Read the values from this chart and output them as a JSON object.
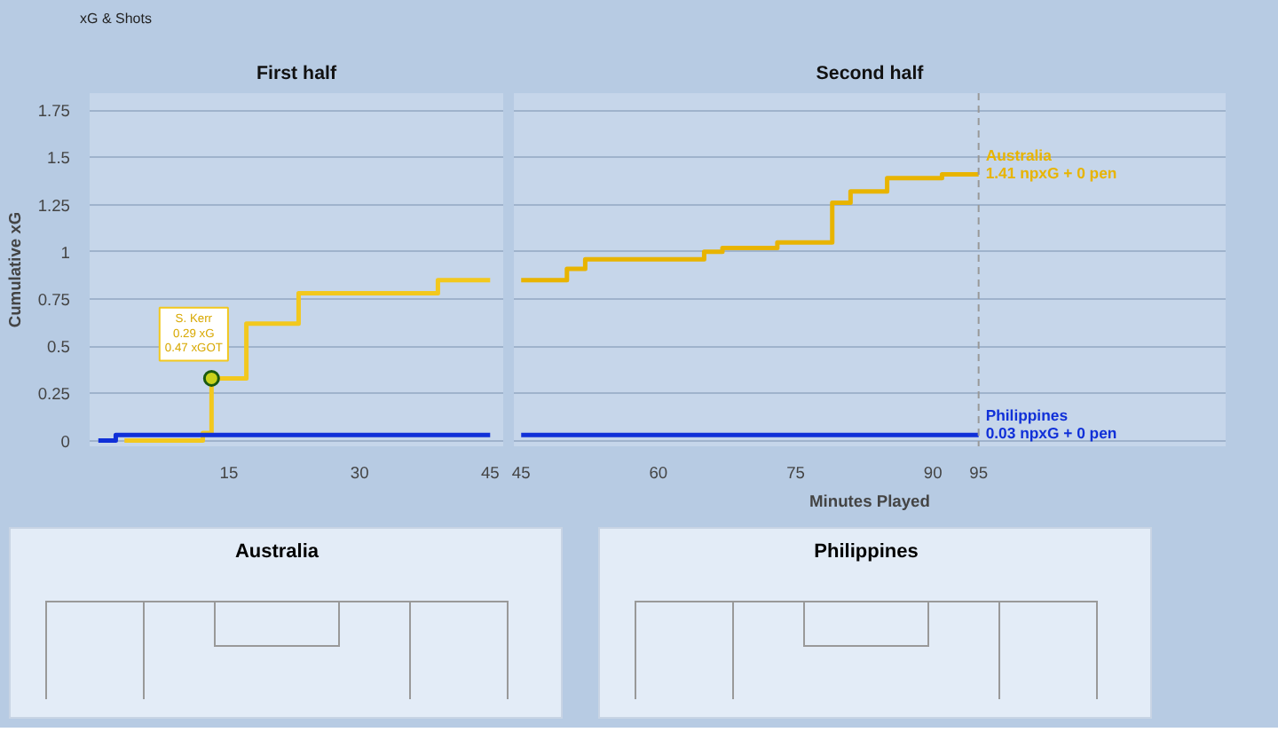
{
  "chart_data": [
    {
      "type": "step",
      "title": "First half",
      "ylabel": "Cumulative xG",
      "xlim": [
        -1,
        46.5
      ],
      "xticks": [
        15,
        30,
        45
      ],
      "ylim": [
        -0.03,
        1.84
      ],
      "yticks": [
        0,
        0.25,
        0.5,
        0.75,
        1,
        1.25,
        1.5,
        1.75
      ],
      "grid": "y",
      "annotations": [
        "xG & Shots",
        "S. Kerr\n0.29 xG\n0.47 xGOT"
      ],
      "series": [
        {
          "color": "#1030d8",
          "x": [
            0,
            2,
            45
          ],
          "values": [
            0,
            0.03,
            0.03
          ]
        },
        {
          "color": "#f2c81e",
          "x": [
            3,
            12,
            13,
            17,
            23,
            39,
            45
          ],
          "values": [
            0,
            0.04,
            0.33,
            0.62,
            0.78,
            0.85,
            0.85
          ]
        },
        {
          "type": "scatter",
          "marker": "circle",
          "color": "#c8d21c",
          "x": [
            13
          ],
          "values": [
            0.33
          ]
        }
      ]
    },
    {
      "type": "step",
      "title": "Second half",
      "xlabel": "Minutes Played",
      "xlim": [
        44.2,
        122
      ],
      "xticks": [
        45,
        60,
        75,
        90,
        95
      ],
      "ylim": [
        -0.03,
        1.84
      ],
      "grid": "y",
      "tick_labels": "x",
      "annotations": [
        {
          "text": "1.41 npxG + 0 pen",
          "x": 95,
          "y": 1.41
        },
        {
          "text": "0.03 npxG + 0 pen",
          "x": 95,
          "y": 0.03
        }
      ],
      "ref_lines": [
        {
          "axis": "x",
          "value": 95,
          "color": "#999999",
          "line_style": "dashed"
        }
      ],
      "series": [
        {
          "name": "Australia",
          "color": "#e8b400",
          "x": [
            45,
            50,
            52,
            65,
            67,
            73,
            79,
            81,
            85,
            91,
            95
          ],
          "values": [
            0.85,
            0.91,
            0.96,
            1.0,
            1.02,
            1.05,
            1.26,
            1.32,
            1.39,
            1.41,
            1.41
          ]
        },
        {
          "name": "Philippines",
          "color": "#1030d8",
          "x": [
            45,
            95
          ],
          "values": [
            0.03,
            0.03
          ]
        }
      ]
    },
    {
      "type": "other",
      "title": "Australia"
    },
    {
      "type": "other",
      "title": "Philippines"
    }
  ]
}
